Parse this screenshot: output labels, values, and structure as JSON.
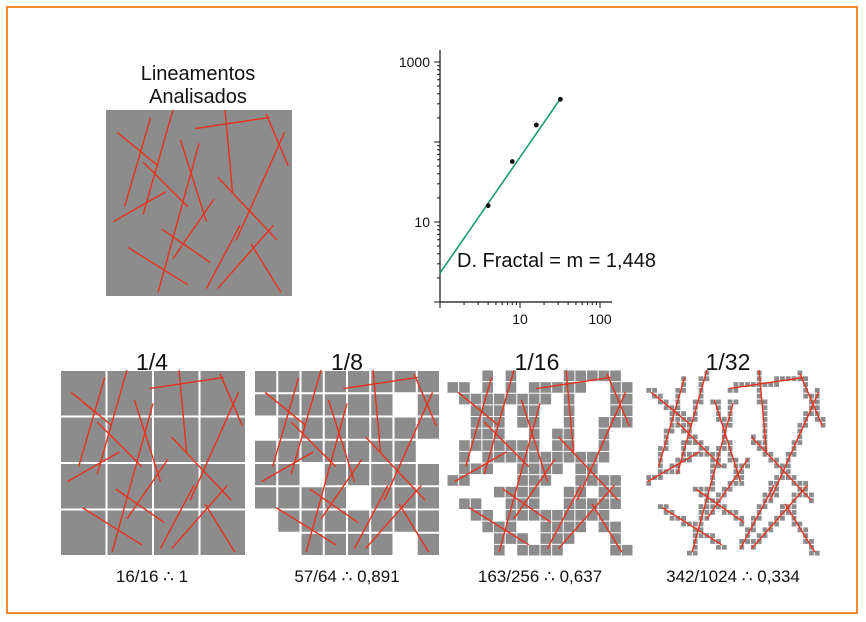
{
  "title": "Lineamentos Analisados",
  "colors": {
    "frame": "#f08a2c",
    "cell": "#8c8c8c",
    "lineament": "#e8321e",
    "fit_line": "#1a9a6a",
    "point": "#111111"
  },
  "chart_data": {
    "type": "scatter",
    "xscale": "log",
    "yscale": "log",
    "x_ticks": [
      "10",
      "100"
    ],
    "y_ticks": [
      "10",
      "1000"
    ],
    "xlim": [
      1,
      100
    ],
    "ylim": [
      1,
      1000
    ],
    "series": [
      {
        "x": [
          4,
          8,
          16,
          32
        ],
        "y": [
          16,
          57,
          163,
          342
        ]
      }
    ],
    "fit_line": {
      "slope": 1.448,
      "intercept_y_at_x1": 2.3
    },
    "annotation": "D. Fractal = m = 1,448"
  },
  "grids": [
    {
      "scale": "1/4",
      "divisions": 4,
      "ratio": "16/16 ∴ 1"
    },
    {
      "scale": "1/8",
      "divisions": 8,
      "ratio": "57/64 ∴ 0,891"
    },
    {
      "scale": "1/16",
      "divisions": 16,
      "ratio": "163/256 ∴ 0,637"
    },
    {
      "scale": "1/32",
      "divisions": 32,
      "ratio": "342/1024 ∴ 0,334"
    }
  ],
  "lineaments": [
    [
      0.24,
      0.04,
      0.1,
      0.52
    ],
    [
      0.06,
      0.12,
      0.28,
      0.3
    ],
    [
      0.04,
      0.6,
      0.32,
      0.44
    ],
    [
      0.36,
      0.0,
      0.2,
      0.56
    ],
    [
      0.2,
      0.28,
      0.44,
      0.52
    ],
    [
      0.12,
      0.74,
      0.44,
      0.94
    ],
    [
      0.5,
      0.18,
      0.28,
      0.98
    ],
    [
      0.4,
      0.16,
      0.54,
      0.6
    ],
    [
      0.48,
      0.1,
      0.88,
      0.04
    ],
    [
      0.64,
      0.0,
      0.68,
      0.44
    ],
    [
      0.6,
      0.36,
      0.92,
      0.7
    ],
    [
      0.96,
      0.12,
      0.7,
      0.7
    ],
    [
      0.58,
      0.48,
      0.36,
      0.8
    ],
    [
      0.78,
      0.72,
      0.94,
      0.98
    ],
    [
      0.72,
      0.62,
      0.54,
      0.96
    ],
    [
      0.9,
      0.62,
      0.6,
      0.96
    ],
    [
      0.3,
      0.64,
      0.56,
      0.82
    ],
    [
      0.86,
      0.02,
      0.98,
      0.3
    ]
  ]
}
